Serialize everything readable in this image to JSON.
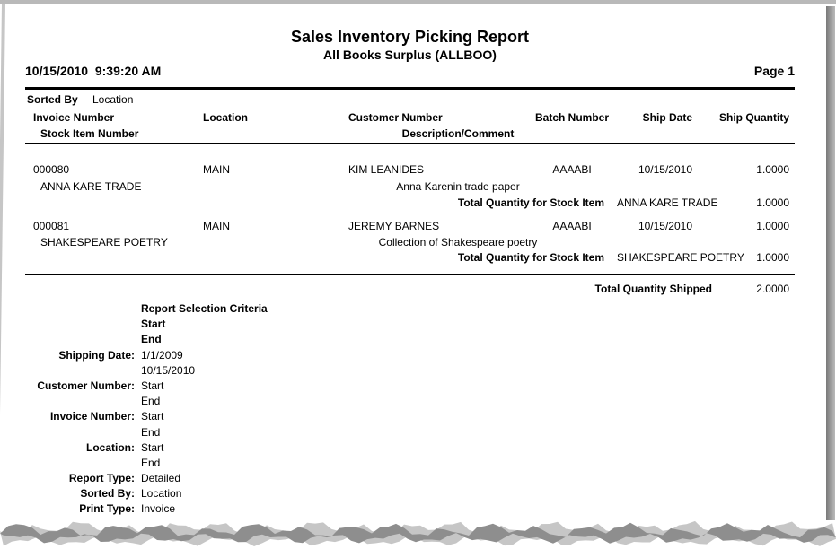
{
  "header": {
    "title": "Sales Inventory Picking Report",
    "subtitle": "All Books Surplus (ALLBOO)",
    "datetime": "10/15/2010  9:39:20 AM",
    "page": "Page 1"
  },
  "sort": {
    "label": "Sorted By",
    "value": "Location"
  },
  "columns": {
    "invoice": "Invoice Number",
    "stock_item": "Stock Item Number",
    "location": "Location",
    "customer": "Customer Number",
    "description": "Description/Comment",
    "batch": "Batch Number",
    "ship_date": "Ship Date",
    "ship_qty": "Ship Quantity"
  },
  "rows": [
    {
      "invoice": "000080",
      "location": "MAIN",
      "customer": "KIM LEANIDES",
      "batch": "AAAABI",
      "ship_date": "10/15/2010",
      "ship_qty": "1.0000",
      "stock_item": "ANNA KARE TRADE",
      "description": "Anna Karenin trade paper",
      "total_label": "Total Quantity for Stock Item",
      "total_item": "ANNA KARE TRADE",
      "total_qty": "1.0000"
    },
    {
      "invoice": "000081",
      "location": "MAIN",
      "customer": "JEREMY BARNES",
      "batch": "AAAABI",
      "ship_date": "10/15/2010",
      "ship_qty": "1.0000",
      "stock_item": "SHAKESPEARE POETRY",
      "description": "Collection of Shakespeare poetry",
      "total_label": "Total Quantity for Stock Item",
      "total_item": "SHAKESPEARE POETRY",
      "total_qty": "1.0000"
    }
  ],
  "grand_total": {
    "label": "Total Quantity Shipped",
    "value": "2.0000"
  },
  "criteria": {
    "rows": [
      {
        "label": "",
        "value": "Report Selection Criteria"
      },
      {
        "label": "",
        "value": "Start"
      },
      {
        "label": "",
        "value": "End"
      },
      {
        "label": "Shipping Date:",
        "value": "1/1/2009"
      },
      {
        "label": "",
        "value": "10/15/2010"
      },
      {
        "label": "Customer Number:",
        "value": "Start"
      },
      {
        "label": "",
        "value": "End"
      },
      {
        "label": "Invoice Number:",
        "value": "Start"
      },
      {
        "label": "",
        "value": "End"
      },
      {
        "label": "Location:",
        "value": "Start"
      },
      {
        "label": "",
        "value": "End"
      },
      {
        "label": "Report Type:",
        "value": "Detailed"
      },
      {
        "label": "Sorted By:",
        "value": "Location"
      },
      {
        "label": "Print Type:",
        "value": "Invoice"
      }
    ]
  }
}
